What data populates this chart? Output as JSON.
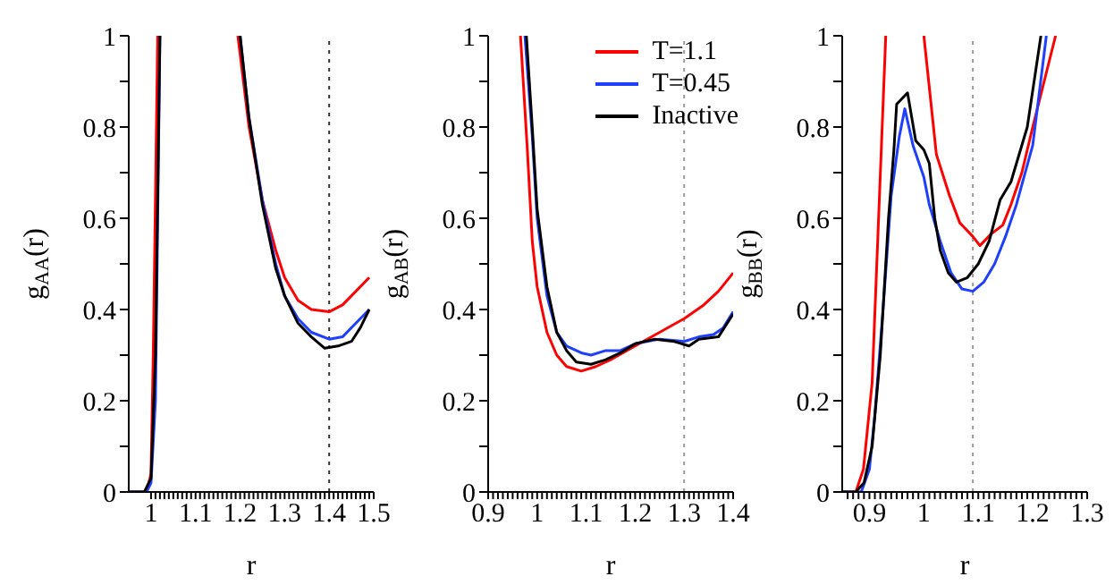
{
  "chart_data": [
    {
      "type": "line",
      "xlabel": "r",
      "ylabel": "g$_{AA}$(r)",
      "xlim": [
        0.95,
        1.5
      ],
      "ylim": [
        0,
        1
      ],
      "xticks": [
        1,
        {
          "value": 1.01,
          "label": null
        },
        {
          "value": 1.02,
          "label": null
        },
        {
          "value": 1.03,
          "label": null
        },
        {
          "value": 1.04,
          "label": null
        },
        {
          "value": 1.05,
          "label": null
        },
        {
          "value": 1.06,
          "label": null
        },
        {
          "value": 1.07,
          "label": null
        },
        {
          "value": 1.08,
          "label": null
        },
        {
          "value": 1.09,
          "label": null
        },
        1.1,
        {
          "value": 1.11,
          "label": null
        },
        {
          "value": 1.12,
          "label": null
        },
        {
          "value": 1.13,
          "label": null
        },
        {
          "value": 1.14,
          "label": null
        },
        {
          "value": 1.15,
          "label": null
        },
        {
          "value": 1.16,
          "label": null
        },
        {
          "value": 1.17,
          "label": null
        },
        {
          "value": 1.18,
          "label": null
        },
        {
          "value": 1.19,
          "label": null
        },
        1.2,
        {
          "value": 1.21,
          "label": null
        },
        {
          "value": 1.22,
          "label": null
        },
        {
          "value": 1.23,
          "label": null
        },
        {
          "value": 1.24,
          "label": null
        },
        {
          "value": 1.25,
          "label": null
        },
        {
          "value": 1.26,
          "label": null
        },
        {
          "value": 1.27,
          "label": null
        },
        {
          "value": 1.28,
          "label": null
        },
        {
          "value": 1.29,
          "label": null
        },
        1.3,
        {
          "value": 1.31,
          "label": null
        },
        {
          "value": 1.32,
          "label": null
        },
        {
          "value": 1.33,
          "label": null
        },
        {
          "value": 1.34,
          "label": null
        },
        {
          "value": 1.35,
          "label": null
        },
        {
          "value": 1.36,
          "label": null
        },
        {
          "value": 1.37,
          "label": null
        },
        {
          "value": 1.38,
          "label": null
        },
        {
          "value": 1.39,
          "label": null
        },
        1.4,
        {
          "value": 1.41,
          "label": null
        },
        {
          "value": 1.42,
          "label": null
        },
        {
          "value": 1.43,
          "label": null
        },
        {
          "value": 1.44,
          "label": null
        },
        {
          "value": 1.45,
          "label": null
        },
        {
          "value": 1.46,
          "label": null
        },
        {
          "value": 1.47,
          "label": null
        },
        {
          "value": 1.48,
          "label": null
        },
        {
          "value": 1.49,
          "label": null
        },
        1.5
      ],
      "yticks": [
        0,
        {
          "value": 0.1,
          "label": null
        },
        0.2,
        {
          "value": 0.3,
          "label": null
        },
        0.4,
        {
          "value": 0.5,
          "label": null
        },
        0.6,
        {
          "value": 0.7,
          "label": null
        },
        0.8,
        {
          "value": 0.9,
          "label": null
        },
        1
      ],
      "ref_lines": [
        {
          "axis": "x",
          "value": 1.4,
          "color": "#333333",
          "line_style": "dotted"
        }
      ],
      "series": [
        {
          "color": "#ff0000",
          "x": [
            0.95,
            0.98,
            0.99,
            1.0,
            1.005,
            1.015,
            1.1,
            1.195,
            1.22,
            1.25,
            1.28,
            1.3,
            1.33,
            1.36,
            1.4,
            1.43,
            1.46,
            1.49
          ],
          "values": [
            0,
            0,
            0,
            0.04,
            0.3,
            1,
            null,
            1,
            0.8,
            0.64,
            0.53,
            0.47,
            0.42,
            0.4,
            0.395,
            0.41,
            0.44,
            0.47
          ]
        },
        {
          "color": "#1f3fff",
          "x": [
            0.95,
            0.99,
            1.0,
            1.01,
            1.02,
            1.1,
            1.2,
            1.22,
            1.25,
            1.28,
            1.3,
            1.33,
            1.36,
            1.4,
            1.43,
            1.46,
            1.49
          ],
          "values": [
            0,
            0,
            0.02,
            0.2,
            1,
            null,
            1,
            0.82,
            0.64,
            0.5,
            0.43,
            0.38,
            0.35,
            0.335,
            0.34,
            0.37,
            0.4
          ]
        },
        {
          "color": "#000000",
          "x": [
            0.95,
            0.985,
            1.0,
            1.01,
            1.02,
            1.1,
            1.2,
            1.22,
            1.25,
            1.28,
            1.3,
            1.33,
            1.36,
            1.39,
            1.42,
            1.45,
            1.47,
            1.49
          ],
          "values": [
            0,
            0,
            0.03,
            0.3,
            1,
            null,
            1,
            0.82,
            0.63,
            0.49,
            0.43,
            0.37,
            0.34,
            0.315,
            0.32,
            0.33,
            0.36,
            0.4
          ]
        }
      ]
    },
    {
      "type": "line",
      "xlabel": "r",
      "ylabel": "g$_{AB}$(r)",
      "xlim": [
        0.9,
        1.4
      ],
      "ylim": [
        0,
        1
      ],
      "legend": "top right",
      "xticks": [
        0.9,
        {
          "value": 0.91,
          "label": null
        },
        {
          "value": 0.92,
          "label": null
        },
        {
          "value": 0.93,
          "label": null
        },
        {
          "value": 0.94,
          "label": null
        },
        {
          "value": 0.95,
          "label": null
        },
        {
          "value": 0.96,
          "label": null
        },
        {
          "value": 0.97,
          "label": null
        },
        {
          "value": 0.98,
          "label": null
        },
        {
          "value": 0.99,
          "label": null
        },
        1,
        {
          "value": 1.01,
          "label": null
        },
        {
          "value": 1.02,
          "label": null
        },
        {
          "value": 1.03,
          "label": null
        },
        {
          "value": 1.04,
          "label": null
        },
        {
          "value": 1.05,
          "label": null
        },
        {
          "value": 1.06,
          "label": null
        },
        {
          "value": 1.07,
          "label": null
        },
        {
          "value": 1.08,
          "label": null
        },
        {
          "value": 1.09,
          "label": null
        },
        1.1,
        {
          "value": 1.11,
          "label": null
        },
        {
          "value": 1.12,
          "label": null
        },
        {
          "value": 1.13,
          "label": null
        },
        {
          "value": 1.14,
          "label": null
        },
        {
          "value": 1.15,
          "label": null
        },
        {
          "value": 1.16,
          "label": null
        },
        {
          "value": 1.17,
          "label": null
        },
        {
          "value": 1.18,
          "label": null
        },
        {
          "value": 1.19,
          "label": null
        },
        1.2,
        {
          "value": 1.21,
          "label": null
        },
        {
          "value": 1.22,
          "label": null
        },
        {
          "value": 1.23,
          "label": null
        },
        {
          "value": 1.24,
          "label": null
        },
        {
          "value": 1.25,
          "label": null
        },
        {
          "value": 1.26,
          "label": null
        },
        {
          "value": 1.27,
          "label": null
        },
        {
          "value": 1.28,
          "label": null
        },
        {
          "value": 1.29,
          "label": null
        },
        1.3,
        {
          "value": 1.31,
          "label": null
        },
        {
          "value": 1.32,
          "label": null
        },
        {
          "value": 1.33,
          "label": null
        },
        {
          "value": 1.34,
          "label": null
        },
        {
          "value": 1.35,
          "label": null
        },
        {
          "value": 1.36,
          "label": null
        },
        {
          "value": 1.37,
          "label": null
        },
        {
          "value": 1.38,
          "label": null
        },
        {
          "value": 1.39,
          "label": null
        },
        1.4
      ],
      "yticks": [
        0,
        {
          "value": 0.1,
          "label": null
        },
        0.2,
        {
          "value": 0.3,
          "label": null
        },
        0.4,
        {
          "value": 0.5,
          "label": null
        },
        0.6,
        {
          "value": 0.7,
          "label": null
        },
        0.8,
        {
          "value": 0.9,
          "label": null
        },
        1
      ],
      "ref_lines": [
        {
          "axis": "x",
          "value": 1.3,
          "color": "#999999",
          "line_style": "dotted"
        }
      ],
      "series": [
        {
          "name": "T=1.1",
          "color": "#ff0000",
          "x": [
            0.966,
            0.98,
            0.99,
            1.0,
            1.02,
            1.04,
            1.06,
            1.09,
            1.12,
            1.15,
            1.2,
            1.25,
            1.3,
            1.34,
            1.37,
            1.4
          ],
          "values": [
            1,
            0.75,
            0.55,
            0.45,
            0.35,
            0.3,
            0.275,
            0.265,
            0.275,
            0.29,
            0.32,
            0.35,
            0.38,
            0.41,
            0.44,
            0.48
          ]
        },
        {
          "name": "T=0.45",
          "color": "#1f3fff",
          "x": [
            0.975,
            0.99,
            1.0,
            1.02,
            1.04,
            1.06,
            1.09,
            1.11,
            1.14,
            1.17,
            1.2,
            1.25,
            1.3,
            1.33,
            1.36,
            1.38,
            1.4
          ],
          "values": [
            1,
            0.78,
            0.6,
            0.43,
            0.35,
            0.32,
            0.305,
            0.3,
            0.31,
            0.31,
            0.325,
            0.335,
            0.33,
            0.34,
            0.345,
            0.36,
            0.395
          ]
        },
        {
          "name": "Inactive",
          "color": "#000000",
          "x": [
            0.978,
            0.99,
            1.0,
            1.02,
            1.04,
            1.06,
            1.08,
            1.11,
            1.14,
            1.17,
            1.2,
            1.24,
            1.28,
            1.31,
            1.33,
            1.37,
            1.4
          ],
          "values": [
            1,
            0.8,
            0.62,
            0.45,
            0.35,
            0.31,
            0.285,
            0.28,
            0.29,
            0.305,
            0.325,
            0.335,
            0.33,
            0.32,
            0.335,
            0.34,
            0.39
          ]
        }
      ]
    },
    {
      "type": "line",
      "xlabel": "r",
      "ylabel": "g$_{BB}$(r)",
      "xlim": [
        0.85,
        1.3
      ],
      "ylim": [
        0,
        1
      ],
      "xticks": [
        {
          "value": 0.86,
          "label": null
        },
        {
          "value": 0.87,
          "label": null
        },
        {
          "value": 0.88,
          "label": null
        },
        {
          "value": 0.89,
          "label": null
        },
        0.9,
        {
          "value": 0.91,
          "label": null
        },
        {
          "value": 0.92,
          "label": null
        },
        {
          "value": 0.93,
          "label": null
        },
        {
          "value": 0.94,
          "label": null
        },
        {
          "value": 0.95,
          "label": null
        },
        {
          "value": 0.96,
          "label": null
        },
        {
          "value": 0.97,
          "label": null
        },
        {
          "value": 0.98,
          "label": null
        },
        {
          "value": 0.99,
          "label": null
        },
        1,
        {
          "value": 1.01,
          "label": null
        },
        {
          "value": 1.02,
          "label": null
        },
        {
          "value": 1.03,
          "label": null
        },
        {
          "value": 1.04,
          "label": null
        },
        {
          "value": 1.05,
          "label": null
        },
        {
          "value": 1.06,
          "label": null
        },
        {
          "value": 1.07,
          "label": null
        },
        {
          "value": 1.08,
          "label": null
        },
        {
          "value": 1.09,
          "label": null
        },
        1.1,
        {
          "value": 1.11,
          "label": null
        },
        {
          "value": 1.12,
          "label": null
        },
        {
          "value": 1.13,
          "label": null
        },
        {
          "value": 1.14,
          "label": null
        },
        {
          "value": 1.15,
          "label": null
        },
        {
          "value": 1.16,
          "label": null
        },
        {
          "value": 1.17,
          "label": null
        },
        {
          "value": 1.18,
          "label": null
        },
        {
          "value": 1.19,
          "label": null
        },
        1.2,
        {
          "value": 1.21,
          "label": null
        },
        {
          "value": 1.22,
          "label": null
        },
        {
          "value": 1.23,
          "label": null
        },
        {
          "value": 1.24,
          "label": null
        },
        {
          "value": 1.25,
          "label": null
        },
        {
          "value": 1.26,
          "label": null
        },
        {
          "value": 1.27,
          "label": null
        },
        {
          "value": 1.28,
          "label": null
        },
        {
          "value": 1.29,
          "label": null
        },
        1.3
      ],
      "yticks": [
        0,
        {
          "value": 0.1,
          "label": null
        },
        0.2,
        {
          "value": 0.3,
          "label": null
        },
        0.4,
        {
          "value": 0.5,
          "label": null
        },
        0.6,
        {
          "value": 0.7,
          "label": null
        },
        0.8,
        {
          "value": 0.9,
          "label": null
        },
        1
      ],
      "ref_lines": [
        {
          "axis": "x",
          "value": 1.09,
          "color": "#999999",
          "line_style": "dotted"
        }
      ],
      "series": [
        {
          "color": "#ff0000",
          "x": [
            0.85,
            0.875,
            0.889,
            0.905,
            0.93,
            0.96,
            1.0,
            1.023,
            1.047,
            1.066,
            1.09,
            1.103,
            1.123,
            1.145,
            1.16,
            1.18,
            1.2,
            1.242
          ],
          "values": [
            0,
            0,
            0.05,
            0.24,
            1,
            null,
            1,
            0.74,
            0.65,
            0.59,
            0.56,
            0.54,
            0.565,
            0.585,
            0.63,
            0.7,
            0.8,
            1
          ]
        },
        {
          "color": "#1f3fff",
          "x": [
            0.85,
            0.885,
            0.9,
            0.91,
            0.925,
            0.94,
            0.955,
            0.965,
            0.98,
            1.0,
            1.01,
            1.03,
            1.05,
            1.07,
            1.09,
            1.11,
            1.13,
            1.15,
            1.17,
            1.2,
            1.225
          ],
          "values": [
            0,
            0,
            0.05,
            0.17,
            0.4,
            0.65,
            0.78,
            0.84,
            0.76,
            0.69,
            0.63,
            0.55,
            0.48,
            0.445,
            0.44,
            0.46,
            0.5,
            0.56,
            0.63,
            0.76,
            1
          ]
        },
        {
          "color": "#000000",
          "x": [
            0.85,
            0.875,
            0.89,
            0.905,
            0.92,
            0.935,
            0.945,
            0.95,
            0.97,
            0.985,
            1.0,
            1.01,
            1.02,
            1.03,
            1.045,
            1.06,
            1.08,
            1.1,
            1.12,
            1.14,
            1.16,
            1.19,
            1.215
          ],
          "values": [
            0,
            0,
            0.02,
            0.1,
            0.3,
            0.6,
            0.75,
            0.85,
            0.875,
            0.77,
            0.75,
            0.72,
            0.6,
            0.53,
            0.48,
            0.46,
            0.47,
            0.5,
            0.55,
            0.64,
            0.68,
            0.8,
            1
          ]
        }
      ]
    }
  ]
}
